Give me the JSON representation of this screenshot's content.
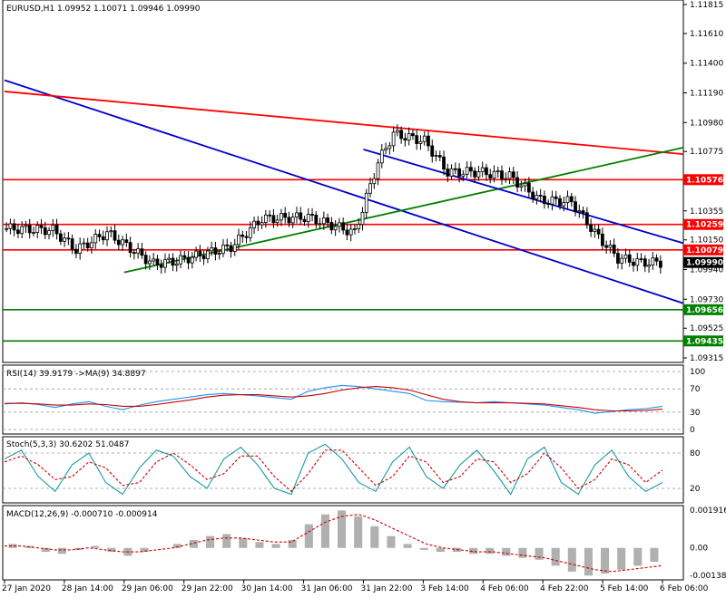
{
  "chart_data": [
    {
      "type": "candlestick",
      "header": "EURUSD,H1  1.09952 1.10071 1.09946 1.09990",
      "price_axis": [
        "1.11815",
        "1.11610",
        "1.11400",
        "1.11190",
        "1.10980",
        "1.10775",
        "1.10355",
        "1.10150",
        "1.09940",
        "1.09730",
        "1.09525",
        "1.09315"
      ],
      "current_price": "1.09990",
      "horizontal_levels": [
        {
          "price": "1.10576",
          "color": "#ff0000"
        },
        {
          "price": "1.10259",
          "color": "#ff0000"
        },
        {
          "price": "1.10079",
          "color": "#ff0000"
        },
        {
          "price": "1.09656",
          "color": "#008000"
        },
        {
          "price": "1.09435",
          "color": "#008000"
        }
      ],
      "trendlines": [
        {
          "color": "#0000cc",
          "from": [
            "27 Jan 2020",
            1.1128
          ],
          "to": [
            "6 Feb 06:00",
            1.0975
          ]
        },
        {
          "color": "#ff0000",
          "from": [
            "27 Jan 2020",
            1.112
          ],
          "to": [
            "6 Feb 06:00",
            1.1077
          ]
        },
        {
          "color": "#008000",
          "from": [
            "29 Jan 06:00",
            1.0992
          ],
          "to": [
            "6 Feb 06:00",
            1.1077
          ]
        },
        {
          "color": "#0000cc",
          "from": [
            "31 Jan 22:00",
            1.1079
          ],
          "to": [
            "6 Feb 06:00",
            1.1017
          ]
        }
      ],
      "ylim": [
        1.09315,
        1.11815
      ],
      "grid": false
    },
    {
      "type": "line",
      "label": "RSI(14) 39.9179  ->MA(9) 34.8897",
      "levels": [
        "100",
        "70",
        "30",
        "0"
      ],
      "ylim": [
        0,
        100
      ],
      "values": [
        44,
        46,
        43,
        38,
        44,
        48,
        40,
        34,
        42,
        48,
        52,
        56,
        60,
        62,
        60,
        58,
        55,
        52,
        66,
        72,
        76,
        74,
        70,
        66,
        62,
        50,
        48,
        47,
        46,
        48,
        46,
        44,
        42,
        38,
        34,
        28,
        31,
        34,
        36,
        40
      ],
      "ma_values": [
        45,
        45,
        44,
        42,
        42,
        44,
        43,
        40,
        40,
        43,
        47,
        51,
        56,
        59,
        60,
        60,
        58,
        56,
        58,
        62,
        68,
        72,
        74,
        72,
        68,
        60,
        52,
        48,
        46,
        46,
        46,
        45,
        44,
        41,
        38,
        34,
        32,
        32,
        33,
        35
      ]
    },
    {
      "type": "line",
      "label": "Stoch(5,3,3) 30.6202 51.0487",
      "levels": [
        "80",
        "20"
      ],
      "ylim": [
        0,
        100
      ],
      "values": [
        70,
        85,
        40,
        15,
        60,
        80,
        30,
        10,
        55,
        85,
        75,
        40,
        20,
        70,
        90,
        60,
        20,
        10,
        80,
        95,
        70,
        30,
        15,
        65,
        90,
        40,
        20,
        60,
        85,
        50,
        10,
        70,
        90,
        30,
        10,
        60,
        85,
        40,
        15,
        30
      ],
      "ma_values": [
        65,
        75,
        60,
        35,
        40,
        65,
        55,
        25,
        30,
        65,
        80,
        60,
        35,
        45,
        75,
        75,
        40,
        15,
        45,
        85,
        85,
        55,
        25,
        40,
        75,
        65,
        30,
        40,
        70,
        65,
        30,
        45,
        80,
        55,
        20,
        35,
        70,
        60,
        30,
        51
      ]
    },
    {
      "type": "bar",
      "label": "MACD(12,26,9) -0.000710 -0.000914",
      "levels": [
        "0.001916",
        "0.00",
        "-0.001389"
      ],
      "ylim": [
        -0.001389,
        0.001916
      ],
      "values": [
        0.0002,
        0.0001,
        -0.0002,
        -0.0003,
        -0.0001,
        0.0001,
        -0.0002,
        -0.0004,
        -0.0002,
        0.0,
        0.0002,
        0.0004,
        0.0006,
        0.0007,
        0.0005,
        0.0003,
        0.0002,
        0.0004,
        0.0012,
        0.0017,
        0.0019,
        0.0016,
        0.0011,
        0.0006,
        0.0002,
        -0.0001,
        -0.0002,
        -0.0002,
        -0.0003,
        -0.0003,
        -0.0004,
        -0.0005,
        -0.0006,
        -0.0009,
        -0.0012,
        -0.0014,
        -0.0013,
        -0.0011,
        -0.0009,
        -0.0007
      ],
      "signal_values": [
        0.0001,
        0.0001,
        0.0,
        -0.0001,
        -0.0001,
        0.0,
        -0.0001,
        -0.0002,
        -0.0002,
        -0.0001,
        0.0,
        0.0002,
        0.0004,
        0.0005,
        0.0005,
        0.0004,
        0.0003,
        0.0003,
        0.0008,
        0.0013,
        0.0016,
        0.0017,
        0.0014,
        0.001,
        0.0006,
        0.0002,
        0.0,
        -0.0001,
        -0.0002,
        -0.0002,
        -0.0003,
        -0.0004,
        -0.0005,
        -0.0007,
        -0.0009,
        -0.0011,
        -0.0012,
        -0.0011,
        -0.001,
        -0.0009
      ]
    }
  ],
  "x_axis": [
    "27 Jan 2020",
    "28 Jan 14:00",
    "29 Jan 06:00",
    "29 Jan 22:00",
    "30 Jan 14:00",
    "31 Jan 06:00",
    "31 Jan 22:00",
    "3 Feb 14:00",
    "4 Feb 06:00",
    "4 Feb 22:00",
    "5 Feb 14:00",
    "6 Feb 06:00"
  ]
}
